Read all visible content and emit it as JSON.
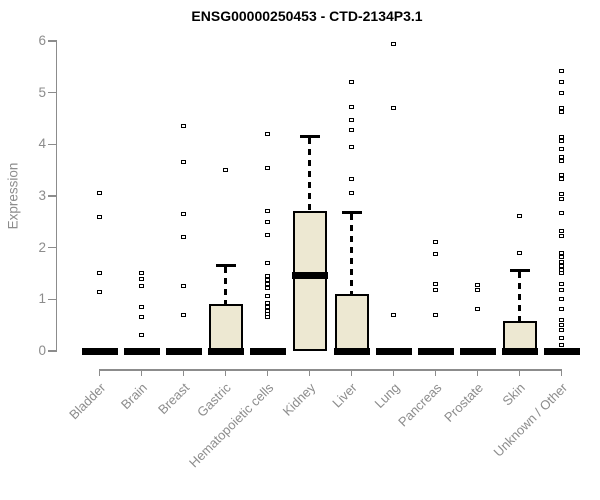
{
  "chart_data": {
    "type": "boxplot",
    "title": "ENSG00000250453 - CTD-2134P3.1",
    "ylabel": "Expression",
    "xlabel": "",
    "ylim": [
      0,
      6
    ],
    "yticks": [
      0,
      1,
      2,
      3,
      4,
      5,
      6
    ],
    "grid": "off",
    "legend": "none",
    "colors": {
      "box_fill": "#EDE8D2",
      "box_stroke": "#000000",
      "axis": "#8C8C8C",
      "title": "#000000",
      "background": "#FFFFFF"
    },
    "categories": [
      {
        "label": "Bladder",
        "q1": 0,
        "median": 0,
        "q3": 0,
        "whisker_high": 0,
        "outliers": [
          3.05,
          2.6,
          1.5,
          1.15
        ]
      },
      {
        "label": "Brain",
        "q1": 0,
        "median": 0,
        "q3": 0,
        "whisker_high": 0,
        "outliers": [
          1.5,
          1.4,
          1.25,
          0.85,
          0.65,
          0.3
        ]
      },
      {
        "label": "Breast",
        "q1": 0,
        "median": 0,
        "q3": 0,
        "whisker_high": 0,
        "outliers": [
          4.35,
          3.65,
          2.65,
          2.2,
          1.25,
          0.7
        ]
      },
      {
        "label": "Gastric",
        "q1": 0,
        "median": 0,
        "q3": 0.9,
        "whisker_high": 1.65,
        "outliers": [
          3.5
        ]
      },
      {
        "label": "Hematopoietic cells",
        "q1": 0,
        "median": 0,
        "q3": 0,
        "whisker_high": 0,
        "outliers": [
          4.2,
          3.55,
          2.7,
          2.5,
          2.25,
          1.7,
          1.45,
          1.37,
          1.3,
          1.22,
          1.07,
          0.92,
          0.85,
          0.78,
          0.72,
          0.65
        ]
      },
      {
        "label": "Kidney",
        "q1": 0,
        "median": 1.47,
        "q3": 2.7,
        "whisker_high": 4.15,
        "outliers": []
      },
      {
        "label": "Liver",
        "q1": 0,
        "median": 0,
        "q3": 1.1,
        "whisker_high": 2.68,
        "outliers": [
          5.2,
          4.72,
          4.48,
          4.28,
          3.95,
          3.32,
          3.05
        ]
      },
      {
        "label": "Lung",
        "q1": 0,
        "median": 0,
        "q3": 0,
        "whisker_high": 0,
        "outliers": [
          5.95,
          4.7,
          0.7
        ]
      },
      {
        "label": "Pancreas",
        "q1": 0,
        "median": 0,
        "q3": 0,
        "whisker_high": 0,
        "outliers": [
          2.1,
          1.88,
          1.3,
          1.18,
          0.7
        ]
      },
      {
        "label": "Prostate",
        "q1": 0,
        "median": 0,
        "q3": 0,
        "whisker_high": 0,
        "outliers": [
          1.27,
          1.18,
          0.82
        ]
      },
      {
        "label": "Skin",
        "q1": 0,
        "median": 0,
        "q3": 0.58,
        "whisker_high": 1.55,
        "outliers": [
          2.62,
          1.9
        ]
      },
      {
        "label": "Unknown / Other",
        "q1": 0,
        "median": 0,
        "q3": 0,
        "whisker_high": 0,
        "outliers": [
          5.42,
          5.2,
          5.0,
          4.7,
          4.62,
          4.15,
          4.07,
          3.9,
          3.75,
          3.68,
          3.4,
          3.32,
          3.03,
          2.95,
          2.67,
          2.32,
          2.22,
          1.9,
          1.82,
          1.73,
          1.65,
          1.57,
          1.5,
          1.3,
          1.18,
          1.0,
          0.82,
          0.6,
          0.5,
          0.4,
          0.25,
          0.12
        ]
      }
    ]
  }
}
